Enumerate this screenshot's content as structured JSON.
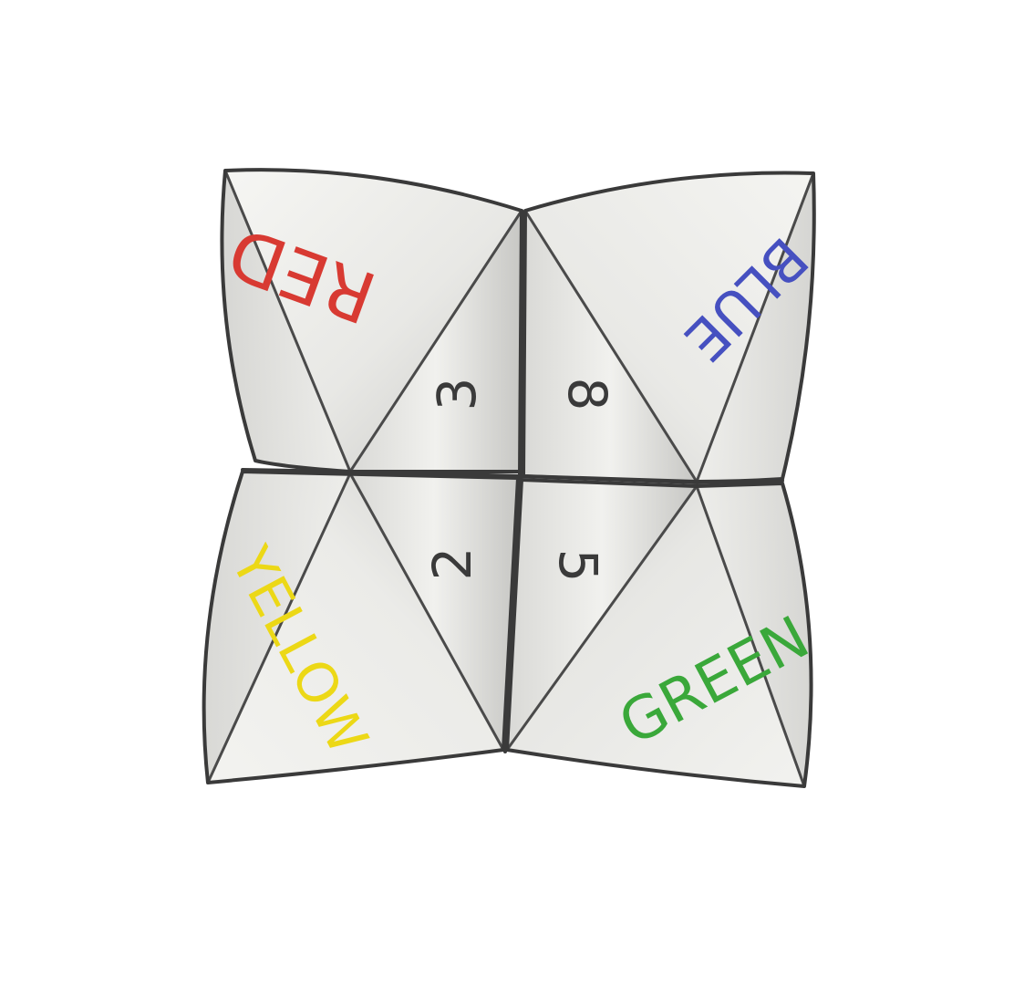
{
  "flaps": {
    "top_left": {
      "color_word": "RED",
      "color": "#d83a32"
    },
    "top_right": {
      "color_word": "BLUE",
      "color": "#4650c0"
    },
    "bottom_left": {
      "color_word": "YELLOW",
      "color": "#ecd816"
    },
    "bottom_right": {
      "color_word": "GREEN",
      "color": "#3aa83a"
    }
  },
  "inner": {
    "top_left_number": "3",
    "top_right_number": "8",
    "bottom_left_number": "2",
    "bottom_right_number": "5"
  },
  "palette": {
    "paper": "#ececea",
    "paper_light": "#f7f7f4",
    "shadow": "#b8b8b5",
    "ink": "#3a3a3a"
  }
}
